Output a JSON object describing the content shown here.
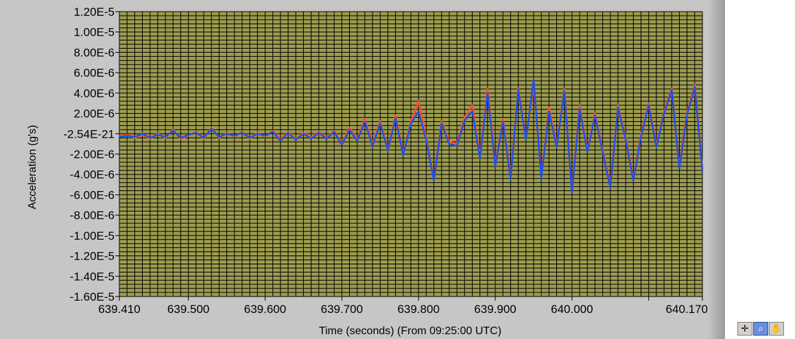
{
  "chart_data": {
    "type": "line",
    "title": "",
    "xlabel": "Time (seconds) (From 09:25:00 UTC)",
    "ylabel": "Acceleration (g's)",
    "xlim": [
      639.41,
      640.17
    ],
    "ylim": [
      -1.6e-05,
      1.2e-05
    ],
    "grid": true,
    "legend": "none",
    "colors": {
      "plot_background": "#9c9c50",
      "grid_line": "#000000",
      "panel": "#c6c6c6",
      "series_red": "#ff4a3a",
      "series_blue": "#1e4ee6"
    },
    "x_tick_labels": [
      {
        "value": 639.41,
        "label": "639.410"
      },
      {
        "value": 639.5,
        "label": "639.500"
      },
      {
        "value": 639.6,
        "label": "639.600"
      },
      {
        "value": 639.7,
        "label": "639.700"
      },
      {
        "value": 639.8,
        "label": "639.800"
      },
      {
        "value": 639.9,
        "label": "639.900"
      },
      {
        "value": 640.0,
        "label": "640.000"
      },
      {
        "value": 640.1,
        "label": ""
      },
      {
        "value": 640.17,
        "label": "640.170"
      }
    ],
    "y_tick_labels": [
      {
        "value": 1.2e-05,
        "label": "1.20E-5"
      },
      {
        "value": 1e-05,
        "label": "1.00E-5"
      },
      {
        "value": 8e-06,
        "label": "8.00E-6"
      },
      {
        "value": 6e-06,
        "label": "6.00E-6"
      },
      {
        "value": 4e-06,
        "label": "4.00E-6"
      },
      {
        "value": 2e-06,
        "label": "2.00E-6"
      },
      {
        "value": -2.54e-21,
        "label": "-2.54E-21"
      },
      {
        "value": -2e-06,
        "label": "-2.00E-6"
      },
      {
        "value": -4e-06,
        "label": "-4.00E-6"
      },
      {
        "value": -6e-06,
        "label": "-6.00E-6"
      },
      {
        "value": -8e-06,
        "label": "-8.00E-6"
      },
      {
        "value": -1e-05,
        "label": "-1.00E-5"
      },
      {
        "value": -1.2e-05,
        "label": "-1.20E-5"
      },
      {
        "value": -1.4e-05,
        "label": "-1.40E-5"
      },
      {
        "value": -1.6e-05,
        "label": "-1.60E-5"
      }
    ],
    "series": [
      {
        "color": "#ff4a3a",
        "x": [
          639.41,
          639.42,
          639.43,
          639.44,
          639.45,
          639.46,
          639.47,
          639.48,
          639.49,
          639.5,
          639.51,
          639.52,
          639.53,
          639.54,
          639.55,
          639.56,
          639.57,
          639.58,
          639.59,
          639.6,
          639.61,
          639.62,
          639.63,
          639.64,
          639.65,
          639.66,
          639.67,
          639.68,
          639.69,
          639.7,
          639.71,
          639.72,
          639.73,
          639.74,
          639.75,
          639.76,
          639.77,
          639.78,
          639.79,
          639.8,
          639.81,
          639.82,
          639.83,
          639.84,
          639.85,
          639.86,
          639.87,
          639.88,
          639.89,
          639.9,
          639.91,
          639.92,
          639.93,
          639.94,
          639.95,
          639.96,
          639.97,
          639.98,
          639.99,
          640.0,
          640.01,
          640.02,
          640.03,
          640.04,
          640.05,
          640.06,
          640.07,
          640.08,
          640.09,
          640.1,
          640.11,
          640.12,
          640.13,
          640.14,
          640.15,
          640.16,
          640.17
        ],
        "y": [
          -2e-07,
          -1e-07,
          -4e-07,
          -1e-07,
          -5e-07,
          0,
          -4e-07,
          4e-07,
          -5e-07,
          -2e-07,
          2e-07,
          -5e-07,
          6e-07,
          -4e-07,
          1e-07,
          -3e-07,
          2e-07,
          -5e-07,
          1e-07,
          -3e-07,
          3e-07,
          -6e-07,
          2e-07,
          -5e-07,
          1e-07,
          -4e-07,
          2e-07,
          -4e-07,
          3e-07,
          -1e-06,
          6e-07,
          -6e-07,
          1.5e-06,
          -1e-06,
          1.2e-06,
          -1.5e-06,
          1.8e-06,
          -2e-06,
          1.2e-06,
          3.2e-06,
          -4e-07,
          -4.5e-06,
          1.2e-06,
          -8e-07,
          -1e-06,
          1.6e-06,
          2.8e-06,
          -2.2e-06,
          4.4e-06,
          -3e-06,
          1.5e-06,
          -4.2e-06,
          4.4e-06,
          -4e-07,
          4.8e-06,
          -4.2e-06,
          2.6e-06,
          -1.1e-06,
          4.4e-06,
          -5.6e-06,
          2.8e-06,
          -1.6e-06,
          2e-06,
          -1.6e-06,
          -5.2e-06,
          2.8e-06,
          -4e-07,
          -4.4e-06,
          -1e-07,
          3e-06,
          -1.1e-06,
          2.2e-06,
          4.4e-06,
          -3.2e-06,
          2.1e-06,
          4.8e-06,
          -3.4e-06
        ]
      },
      {
        "color": "#1e4ee6",
        "x": [
          639.41,
          639.42,
          639.43,
          639.44,
          639.45,
          639.46,
          639.47,
          639.48,
          639.49,
          639.5,
          639.51,
          639.52,
          639.53,
          639.54,
          639.55,
          639.56,
          639.57,
          639.58,
          639.59,
          639.6,
          639.61,
          639.62,
          639.63,
          639.64,
          639.65,
          639.66,
          639.67,
          639.68,
          639.69,
          639.7,
          639.71,
          639.72,
          639.73,
          639.74,
          639.75,
          639.76,
          639.77,
          639.78,
          639.79,
          639.8,
          639.81,
          639.82,
          639.83,
          639.84,
          639.85,
          639.86,
          639.87,
          639.88,
          639.89,
          639.9,
          639.91,
          639.92,
          639.93,
          639.94,
          639.95,
          639.96,
          639.97,
          639.98,
          639.99,
          640.0,
          640.01,
          640.02,
          640.03,
          640.04,
          640.05,
          640.06,
          640.07,
          640.08,
          640.09,
          640.1,
          640.11,
          640.12,
          640.13,
          640.14,
          640.15,
          640.16,
          640.17
        ],
        "y": [
          -3e-07,
          -2e-07,
          -3e-07,
          0,
          -4e-07,
          -1e-07,
          -3e-07,
          3e-07,
          -4e-07,
          -1e-07,
          1e-07,
          -4e-07,
          5e-07,
          -3e-07,
          0,
          -2e-07,
          1e-07,
          -4e-07,
          0,
          -2e-07,
          2e-07,
          -7e-07,
          1e-07,
          -6e-07,
          0,
          -5e-07,
          1e-07,
          -5e-07,
          2e-07,
          -1.1e-06,
          4e-07,
          -7e-07,
          1.2e-06,
          -1.2e-06,
          1e-06,
          -1.6e-06,
          1.5e-06,
          -2.1e-06,
          1e-06,
          2.2e-06,
          -6e-07,
          -4.6e-06,
          1e-06,
          -1e-06,
          -1.2e-06,
          1.3e-06,
          2.2e-06,
          -2.4e-06,
          4e-06,
          -3.2e-06,
          1.2e-06,
          -4.4e-06,
          4.3e-06,
          -6e-07,
          5.3e-06,
          -4.4e-06,
          2.2e-06,
          -1.3e-06,
          4.2e-06,
          -5.8e-06,
          2.5e-06,
          -1.8e-06,
          1.8e-06,
          -1.8e-06,
          -5.3e-06,
          2.6e-06,
          -6e-07,
          -4.6e-06,
          -3e-07,
          2.8e-06,
          -1.3e-06,
          2e-06,
          4.3e-06,
          -3.4e-06,
          1.9e-06,
          4.6e-06,
          -3.6e-06
        ]
      }
    ]
  },
  "palette": {
    "cursor_tool": "cursor-crosshair-icon",
    "zoom_tool": "zoom-magnifier-icon",
    "pan_tool": "pan-hand-icon"
  }
}
